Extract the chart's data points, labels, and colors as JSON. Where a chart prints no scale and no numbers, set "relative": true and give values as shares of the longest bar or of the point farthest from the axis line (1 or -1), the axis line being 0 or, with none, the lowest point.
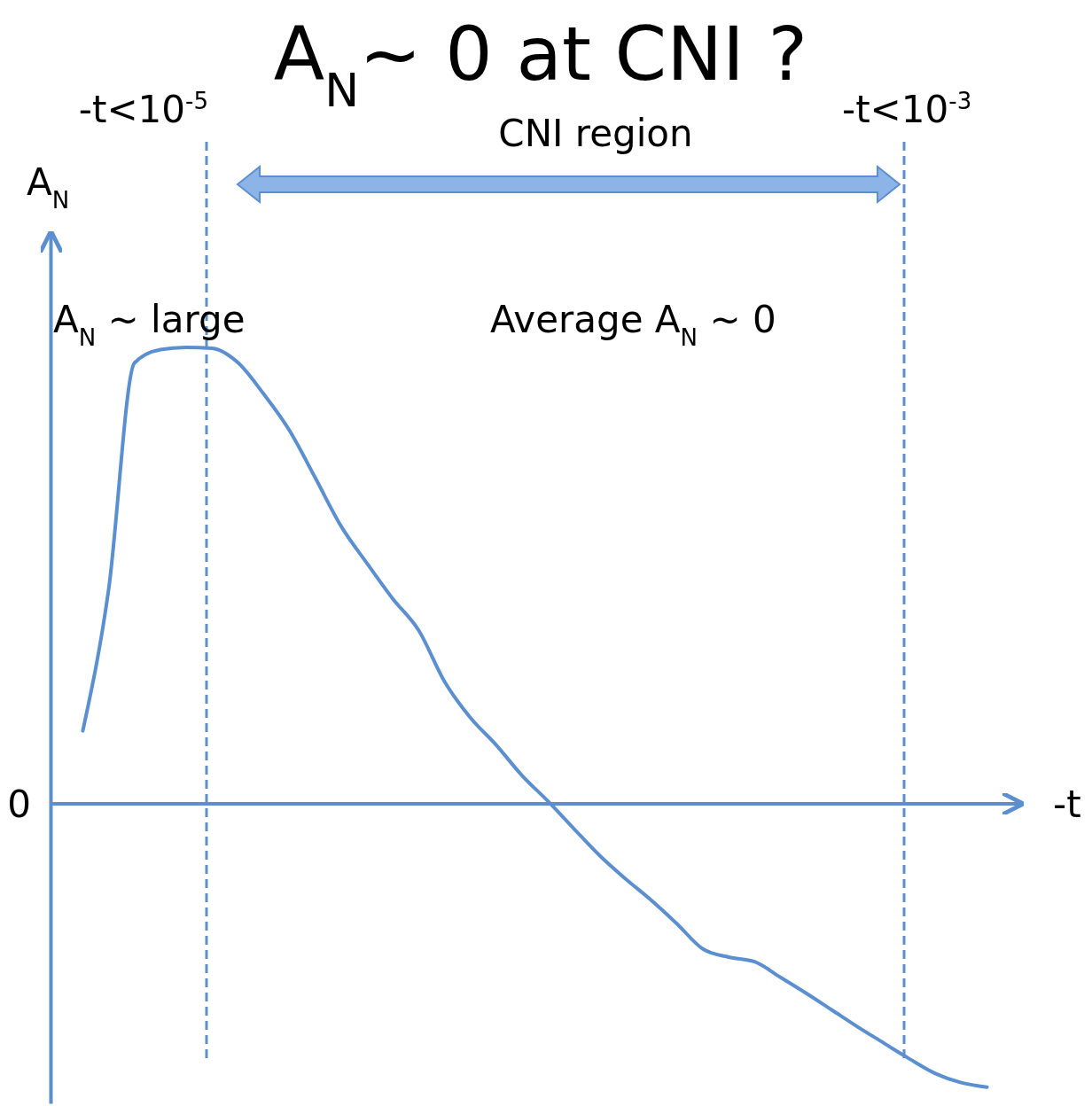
{
  "chart_data": {
    "type": "line",
    "relative": true,
    "title": "A$_{N}$~ 0 at CNI ?",
    "xlabel": "-t",
    "ylabel": "A$_{N}$",
    "marker": "none",
    "line_style": "solid",
    "categories": [
      null,
      null,
      null,
      null,
      null,
      null,
      null,
      null,
      null,
      null,
      null,
      null,
      null,
      null,
      null,
      null,
      null,
      null,
      null,
      null,
      null,
      null,
      null,
      null,
      null,
      null,
      null,
      null,
      null,
      null,
      null,
      null,
      null,
      null,
      null,
      null
    ],
    "series": [
      {
        "color": "#5b8fcf",
        "values": [
          0.16,
          0.47,
          0.966,
          0.995,
          1,
          0.998,
          0.967,
          0.898,
          0.818,
          0.714,
          0.608,
          0.527,
          0.449,
          0.38,
          0.268,
          0.189,
          0.129,
          0.062,
          0.006,
          -0.054,
          -0.113,
          -0.164,
          -0.211,
          -0.263,
          -0.318,
          -0.336,
          -0.346,
          -0.38,
          -0.415,
          -0.452,
          -0.489,
          -0.524,
          -0.559,
          -0.591,
          -0.611,
          -0.621
        ]
      }
    ],
    "ref_lines": [
      {
        "axis": "y",
        "value": 0,
        "label": "0",
        "color": "#5b8fcf"
      }
    ],
    "annotations": [
      "CNI region",
      "A$_{N}$ ~ large",
      "Average A$_{N}$ ~ 0",
      "-t<10$^{-5}$",
      "-t<10$^{-3}$"
    ]
  }
}
